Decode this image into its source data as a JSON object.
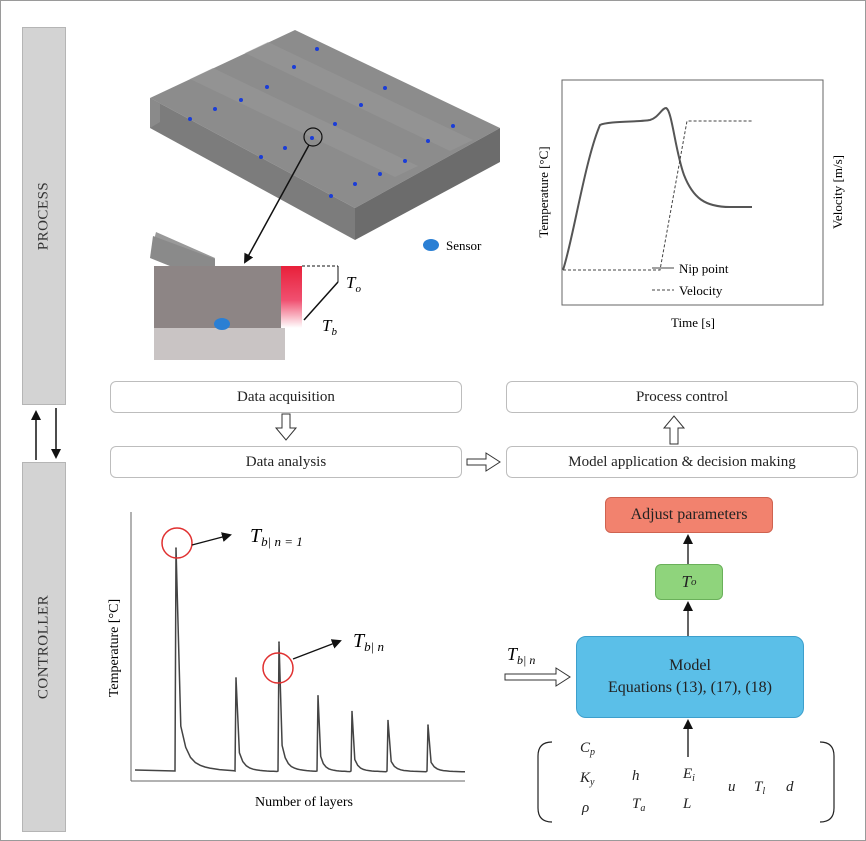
{
  "sidebar": {
    "process_label": "PROCESS",
    "controller_label": "CONTROLLER"
  },
  "process_figure": {
    "legend_sensor": "Sensor",
    "label_To": "T",
    "label_To_sub": "o",
    "label_Tb": "T",
    "label_Tb_sub": "b",
    "colors": {
      "plate": "#8e8e8e",
      "sensor": "#1a3dd8",
      "heat": "#e8203a",
      "sensor_legend": "#2a7fd4"
    }
  },
  "nip_chart": {
    "ylabel_left": "Temperature [°C]",
    "ylabel_right": "Velocity [m/s]",
    "xlabel": "Time [s]",
    "legend": {
      "solid": "Nip point",
      "dashed": "Velocity"
    }
  },
  "flow": {
    "data_acquisition": "Data acquisition",
    "data_analysis": "Data analysis",
    "process_control": "Process control",
    "model_application": "Model application & decision making"
  },
  "layers_chart": {
    "ylabel": "Temperature [°C]",
    "xlabel": "Number of layers",
    "annotation_first": {
      "T": "T",
      "sub": "b| n = 1"
    },
    "annotation_n": {
      "T": "T",
      "sub": "b| n"
    }
  },
  "chart_data": {
    "type": "line",
    "title": "",
    "xlabel": "Number of layers",
    "ylabel": "Temperature [°C]",
    "series": [
      {
        "values": [
          1.0,
          0.42,
          0.58,
          0.34,
          0.27,
          0.23,
          0.21
        ]
      }
    ],
    "x": [
      1,
      2,
      3,
      4,
      5,
      6,
      7
    ]
  },
  "controller": {
    "input_label": {
      "T": "T",
      "sub": "b| n"
    },
    "model_title": "Model",
    "model_equations": "Equations (13), (17), (18)",
    "To_box": {
      "T": "T",
      "sub": "o"
    },
    "adjust_label": "Adjust parameters",
    "colors": {
      "model": "#5bbfe8",
      "To": "#8fd47c",
      "adjust": "#f2826e"
    },
    "params": {
      "Cp": {
        "base": "C",
        "sub": "p"
      },
      "Ky": {
        "base": "K",
        "sub": "y"
      },
      "rho": "ρ",
      "h": "h",
      "Ta": {
        "base": "T",
        "sub": "a"
      },
      "Ei": {
        "base": "E",
        "sub": "i"
      },
      "L": "L",
      "u": "u",
      "Tl": {
        "base": "T",
        "sub": "l"
      },
      "d": "d"
    }
  }
}
